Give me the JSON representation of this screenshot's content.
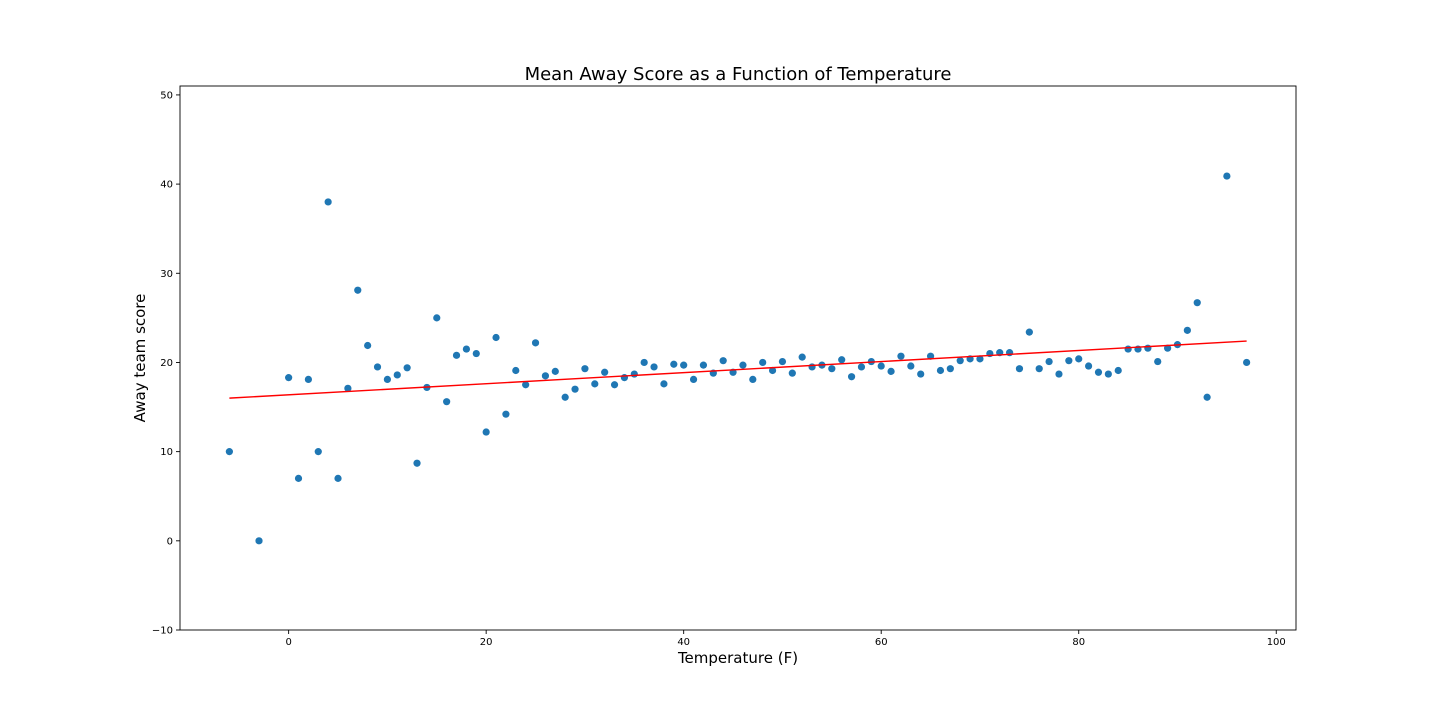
{
  "chart_data": {
    "type": "scatter",
    "title": "Mean Away Score as a Function of Temperature",
    "xlabel": "Temperature (F)",
    "ylabel": "Away team score",
    "xlim": [
      -11,
      102
    ],
    "ylim": [
      -10,
      51
    ],
    "xticks": [
      0,
      20,
      40,
      60,
      80,
      100
    ],
    "yticks": [
      -10,
      0,
      10,
      20,
      30,
      40,
      50
    ],
    "grid": false,
    "point_color": "#1f77b4",
    "line_color": "#ff0000",
    "points": [
      [
        -6,
        10
      ],
      [
        -3,
        0
      ],
      [
        0,
        18.3
      ],
      [
        1,
        7
      ],
      [
        2,
        18.1
      ],
      [
        3,
        10
      ],
      [
        4,
        38
      ],
      [
        5,
        7
      ],
      [
        6,
        17.1
      ],
      [
        7,
        28.1
      ],
      [
        8,
        21.9
      ],
      [
        9,
        19.5
      ],
      [
        10,
        18.1
      ],
      [
        11,
        18.6
      ],
      [
        12,
        19.4
      ],
      [
        13,
        8.7
      ],
      [
        14,
        17.2
      ],
      [
        15,
        25
      ],
      [
        16,
        15.6
      ],
      [
        17,
        20.8
      ],
      [
        18,
        21.5
      ],
      [
        19,
        21
      ],
      [
        20,
        12.2
      ],
      [
        21,
        22.8
      ],
      [
        22,
        14.2
      ],
      [
        23,
        19.1
      ],
      [
        24,
        17.5
      ],
      [
        25,
        22.2
      ],
      [
        26,
        18.5
      ],
      [
        27,
        19
      ],
      [
        28,
        16.1
      ],
      [
        29,
        17
      ],
      [
        30,
        19.3
      ],
      [
        31,
        17.6
      ],
      [
        32,
        18.9
      ],
      [
        33,
        17.5
      ],
      [
        34,
        18.3
      ],
      [
        35,
        18.7
      ],
      [
        36,
        20
      ],
      [
        37,
        19.5
      ],
      [
        38,
        17.6
      ],
      [
        39,
        19.8
      ],
      [
        40,
        19.7
      ],
      [
        41,
        18.1
      ],
      [
        42,
        19.7
      ],
      [
        43,
        18.8
      ],
      [
        44,
        20.2
      ],
      [
        45,
        18.9
      ],
      [
        46,
        19.7
      ],
      [
        47,
        18.1
      ],
      [
        48,
        20
      ],
      [
        49,
        19.1
      ],
      [
        50,
        20.1
      ],
      [
        51,
        18.8
      ],
      [
        52,
        20.6
      ],
      [
        53,
        19.5
      ],
      [
        54,
        19.7
      ],
      [
        55,
        19.3
      ],
      [
        56,
        20.3
      ],
      [
        57,
        18.4
      ],
      [
        58,
        19.5
      ],
      [
        59,
        20.1
      ],
      [
        60,
        19.6
      ],
      [
        61,
        19
      ],
      [
        62,
        20.7
      ],
      [
        63,
        19.6
      ],
      [
        64,
        18.7
      ],
      [
        65,
        20.7
      ],
      [
        66,
        19.1
      ],
      [
        67,
        19.3
      ],
      [
        68,
        20.2
      ],
      [
        69,
        20.4
      ],
      [
        70,
        20.4
      ],
      [
        71,
        21
      ],
      [
        72,
        21.1
      ],
      [
        73,
        21.1
      ],
      [
        74,
        19.3
      ],
      [
        75,
        23.4
      ],
      [
        76,
        19.3
      ],
      [
        77,
        20.1
      ],
      [
        78,
        18.7
      ],
      [
        79,
        20.2
      ],
      [
        80,
        20.4
      ],
      [
        81,
        19.6
      ],
      [
        82,
        18.9
      ],
      [
        83,
        18.7
      ],
      [
        84,
        19.1
      ],
      [
        85,
        21.5
      ],
      [
        86,
        21.5
      ],
      [
        87,
        21.6
      ],
      [
        88,
        20.1
      ],
      [
        89,
        21.6
      ],
      [
        90,
        22
      ],
      [
        91,
        23.6
      ],
      [
        92,
        26.7
      ],
      [
        93,
        16.1
      ],
      [
        95,
        40.9
      ],
      [
        97,
        20
      ]
    ],
    "trendline": {
      "x": [
        -6,
        97
      ],
      "y": [
        16.0,
        22.4
      ]
    }
  }
}
